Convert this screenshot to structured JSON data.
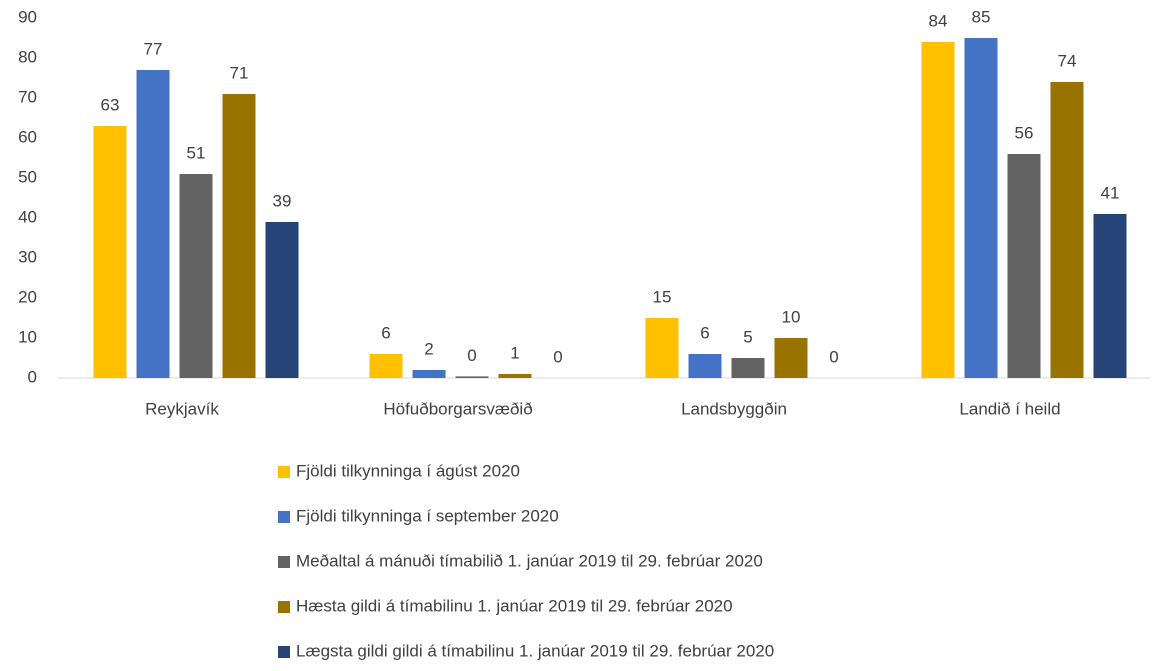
{
  "chart_data": {
    "type": "bar",
    "categories": [
      "Reykjavík",
      "Höfuðborgarsvæðið",
      "Landsbyggðin",
      "Landið í heild"
    ],
    "series": [
      {
        "name": "Fjöldi tilkynninga í ágúst 2020",
        "color": "#ffc000",
        "values": [
          63,
          6,
          15,
          84
        ]
      },
      {
        "name": "Fjöldi tilkynninga í september 2020",
        "color": "#4472c4",
        "values": [
          77,
          2,
          6,
          85
        ]
      },
      {
        "name": "Meðaltal á mánuði tímabilið 1. janúar 2019 til 29. febrúar 2020",
        "color": "#636363",
        "values": [
          51,
          0.4,
          5,
          56
        ],
        "value_labels": [
          "51",
          "0",
          "5",
          "56"
        ]
      },
      {
        "name": "Hæsta gildi á tímabilinu 1. janúar 2019 til 29. febrúar 2020",
        "color": "#997300",
        "values": [
          71,
          1,
          10,
          74
        ]
      },
      {
        "name": "Lægsta gildi gildi á tímabilinu 1. janúar 2019 til 29. febrúar 2020",
        "color": "#264478",
        "values": [
          39,
          0,
          0,
          41
        ]
      }
    ],
    "ylim": [
      0,
      90
    ],
    "yticks": [
      0,
      10,
      20,
      30,
      40,
      50,
      60,
      70,
      80,
      90
    ],
    "grid": false,
    "legend": "bottom"
  }
}
